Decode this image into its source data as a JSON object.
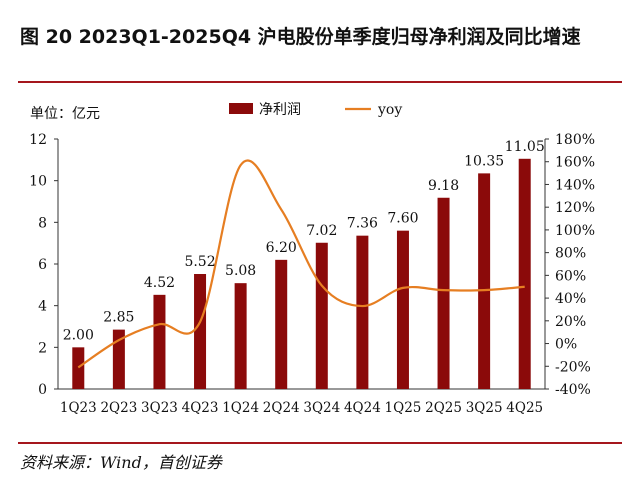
{
  "figure": {
    "title": "图 20 2023Q1-2025Q4 沪电股份单季度归母净利润及同比增速",
    "source": "资料来源：Wind，首创证券"
  },
  "colors": {
    "bar": "#8b0a0a",
    "line": "#e67e22",
    "rule": "#a5161d"
  },
  "chart_data": {
    "type": "bar",
    "categories": [
      "1Q23",
      "2Q23",
      "3Q23",
      "4Q23",
      "1Q24",
      "2Q24",
      "3Q24",
      "4Q24",
      "1Q25",
      "2Q25",
      "3Q25",
      "4Q25"
    ],
    "series": [
      {
        "name": "净利润",
        "type": "bar",
        "axis": "left",
        "values": [
          2.0,
          2.85,
          4.52,
          5.52,
          5.08,
          6.2,
          7.02,
          7.36,
          7.6,
          9.18,
          10.35,
          11.05
        ],
        "labels": [
          "2.00",
          "2.85",
          "4.52",
          "5.52",
          "5.08",
          "6.20",
          "7.02",
          "7.36",
          "7.60",
          "9.18",
          "10.35",
          "11.05"
        ]
      },
      {
        "name": "yoy",
        "type": "line",
        "axis": "right",
        "values": [
          -21,
          3,
          17,
          19,
          157,
          118,
          51,
          33,
          49,
          47,
          47,
          50
        ]
      }
    ],
    "ylabel": "单位：亿元",
    "ylim": [
      0,
      12
    ],
    "yticks": [
      "0",
      "2",
      "4",
      "6",
      "8",
      "10",
      "12"
    ],
    "y2lim": [
      -40,
      180
    ],
    "y2ticks": [
      "-40%",
      "-20%",
      "0%",
      "20%",
      "40%",
      "60%",
      "80%",
      "100%",
      "120%",
      "140%",
      "160%",
      "180%"
    ],
    "legend_position": "top-center"
  }
}
